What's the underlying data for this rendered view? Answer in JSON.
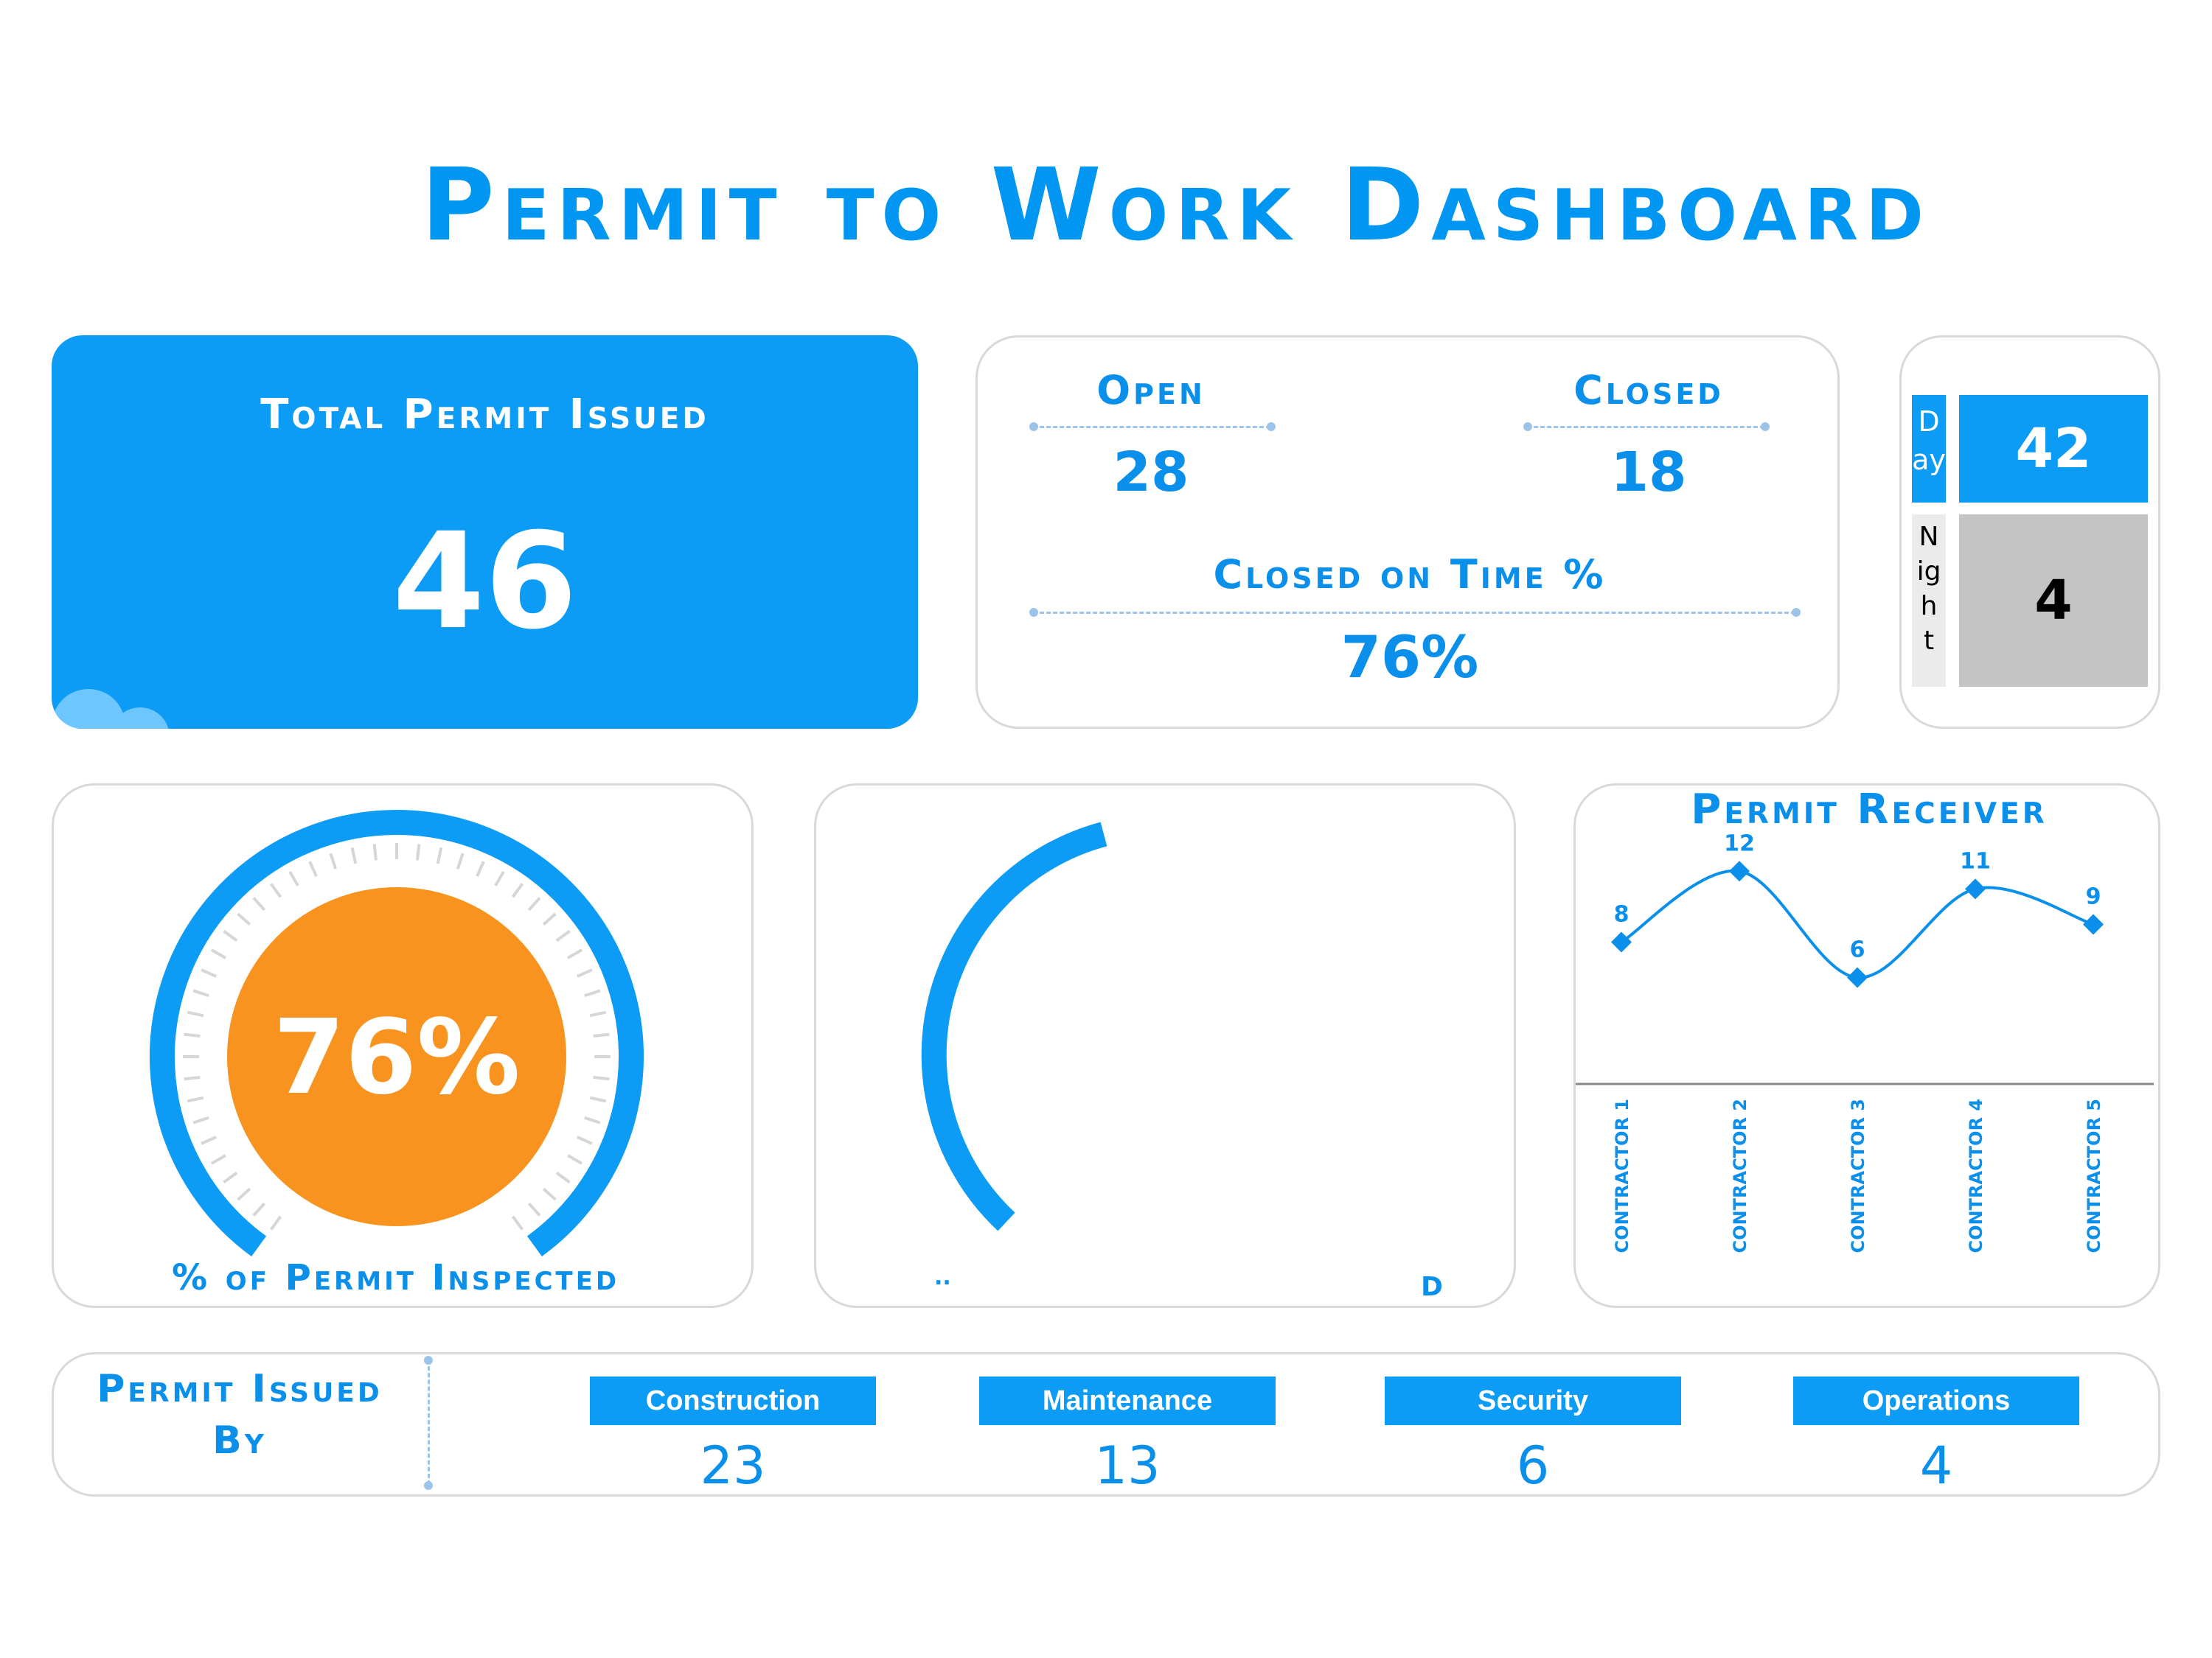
{
  "header": {
    "title": "Permit to Work Dashboard"
  },
  "total_permit": {
    "label": "Total Permit Issued",
    "value": "46"
  },
  "status": {
    "open_label": "Open",
    "open_value": "28",
    "closed_label": "Closed",
    "closed_value": "18",
    "closed_on_time_label": "Closed on Time %",
    "closed_on_time_value": "76%"
  },
  "shift": {
    "day_label_1": "D",
    "day_label_2": "ay",
    "day_value": "42",
    "night_label_1": "N",
    "night_label_2": "ig",
    "night_label_3": "h",
    "night_label_4": "t",
    "night_value": "4"
  },
  "inspected": {
    "value": "76%",
    "label": "% of Permit Inspected",
    "fraction": 0.76
  },
  "second_gauge": {
    "label_left": "..",
    "label_right": "D"
  },
  "chart_data": {
    "type": "line",
    "title": "Permit Receiver",
    "categories": [
      "CONTRACTOR 1",
      "CONTRACTOR 2",
      "CONTRACTOR 3",
      "CONTRACTOR 4",
      "CONTRACTOR 5"
    ],
    "values": [
      8,
      12,
      6,
      11,
      9
    ],
    "data_labels": [
      "8",
      "12",
      "6",
      "11",
      "9"
    ],
    "ylim": [
      0,
      16
    ],
    "grid": false,
    "color": "#0A8FEA"
  },
  "issued_by": {
    "label_line1": "Permit Issued",
    "label_line2": "By",
    "departments": [
      {
        "name": "Construction",
        "value": "23"
      },
      {
        "name": "Maintenance",
        "value": "13"
      },
      {
        "name": "Security",
        "value": "6"
      },
      {
        "name": "Operations",
        "value": "4"
      }
    ]
  },
  "colors": {
    "accent": "#0D9CF5",
    "gauge_center": "#F7931E",
    "night_box": "#C4C4C4"
  }
}
